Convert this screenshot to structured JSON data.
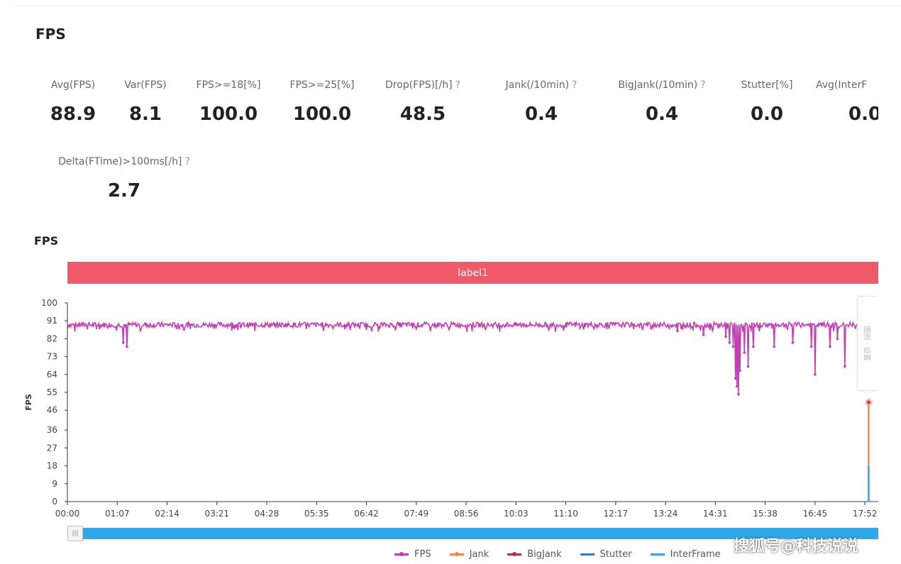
{
  "page": {
    "title": "FPS"
  },
  "metrics": [
    {
      "label": "Avg(FPS)",
      "value": "88.9",
      "help": ""
    },
    {
      "label": "Var(FPS)",
      "value": "8.1",
      "help": ""
    },
    {
      "label": "FPS>=18[%]",
      "value": "100.0",
      "help": ""
    },
    {
      "label": "FPS>=25[%]",
      "value": "100.0",
      "help": ""
    },
    {
      "label": "Drop(FPS)[/h]",
      "value": "48.5",
      "help": "?"
    },
    {
      "label": "Jank(/10min)",
      "value": "0.4",
      "help": "?"
    },
    {
      "label": "BigJank(/10min)",
      "value": "0.4",
      "help": "?"
    },
    {
      "label": "Stutter[%]",
      "value": "0.0",
      "help": ""
    },
    {
      "label": "Avg(InterF",
      "value": "0.0",
      "help": ""
    },
    {
      "label": "Delta(FTime)>100ms[/h]",
      "value": "2.7",
      "help": "?"
    }
  ],
  "chart_section": {
    "title": "FPS",
    "label_bar": "label1",
    "side_tab": "图例 · 设置"
  },
  "slider": {
    "handle_glyph": "|||"
  },
  "legend": [
    {
      "name": "FPS",
      "color": "#c23fb3"
    },
    {
      "name": "Jank",
      "color": "#f08a4b"
    },
    {
      "name": "BigJank",
      "color": "#b03060"
    },
    {
      "name": "Stutter",
      "color": "#3a7bbf"
    },
    {
      "name": "InterFrame",
      "color": "#3aa5e8"
    }
  ],
  "watermark": "搜狐号@科技说说",
  "chart_data": {
    "type": "line",
    "ylabel": "FPS",
    "xlabel": "",
    "ylim": [
      0,
      100
    ],
    "yticks": [
      0,
      9,
      18,
      27,
      36,
      46,
      55,
      64,
      73,
      82,
      91,
      100
    ],
    "x_tick_labels": [
      "00:00",
      "01:07",
      "02:14",
      "03:21",
      "04:28",
      "05:35",
      "06:42",
      "07:49",
      "08:56",
      "10:03",
      "11:10",
      "12:17",
      "13:24",
      "14:31",
      "15:38",
      "16:45",
      "17:52"
    ],
    "x_duration_sec": 1072,
    "x_range_sec": [
      0,
      1090
    ],
    "series": [
      {
        "name": "FPS",
        "baseline": 89,
        "dips": [
          {
            "t": 75,
            "v": 80
          },
          {
            "t": 80,
            "v": 78
          },
          {
            "t": 820,
            "v": 86
          },
          {
            "t": 855,
            "v": 84
          },
          {
            "t": 885,
            "v": 83
          },
          {
            "t": 890,
            "v": 80
          },
          {
            "t": 895,
            "v": 78
          },
          {
            "t": 898,
            "v": 62
          },
          {
            "t": 900,
            "v": 58
          },
          {
            "t": 902,
            "v": 54
          },
          {
            "t": 904,
            "v": 66
          },
          {
            "t": 910,
            "v": 75
          },
          {
            "t": 915,
            "v": 68
          },
          {
            "t": 922,
            "v": 78
          },
          {
            "t": 950,
            "v": 78
          },
          {
            "t": 975,
            "v": 80
          },
          {
            "t": 1000,
            "v": 78
          },
          {
            "t": 1005,
            "v": 64
          },
          {
            "t": 1025,
            "v": 78
          },
          {
            "t": 1035,
            "v": 82
          },
          {
            "t": 1045,
            "v": 68
          },
          {
            "t": 1075,
            "v": 72
          },
          {
            "t": 1082,
            "v": 84
          }
        ]
      },
      {
        "name": "Jank",
        "points": [
          {
            "t": 1077,
            "v": 50
          }
        ]
      },
      {
        "name": "BigJank",
        "points": []
      },
      {
        "name": "Stutter",
        "points": []
      },
      {
        "name": "InterFrame",
        "points": [
          {
            "t": 1077,
            "v": 18
          }
        ]
      }
    ]
  }
}
